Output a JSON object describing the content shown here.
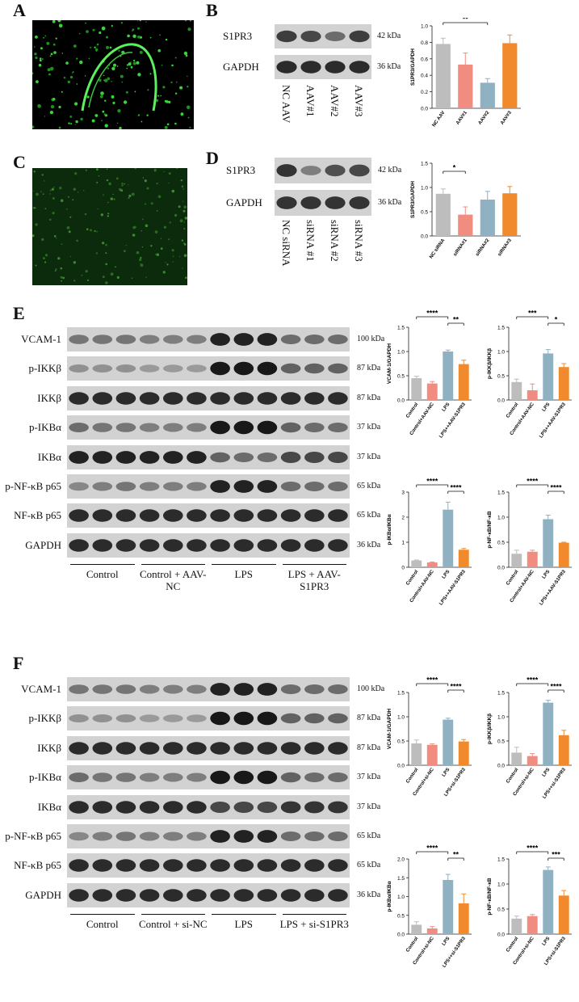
{
  "colors": {
    "control": "#bdbdbd",
    "control_vector": "#f08c80",
    "lps": "#8fb1c2",
    "lps_treatment": "#f08a2c"
  },
  "panels": {
    "A": "A",
    "B": "B",
    "C": "C",
    "D": "D",
    "E": "E",
    "F": "F"
  },
  "B": {
    "blots": [
      {
        "label": "S1PR3",
        "kda": "42 kDa"
      },
      {
        "label": "GAPDH",
        "kda": "36 kDa"
      }
    ],
    "lanes": [
      "NC AAV",
      "AAV#1",
      "AAV#2",
      "AAV#3"
    ]
  },
  "D": {
    "blots": [
      {
        "label": "S1PR3",
        "kda": "42 kDa"
      },
      {
        "label": "GAPDH",
        "kda": "36 kDa"
      }
    ],
    "lanes": [
      "NC siRNA",
      "siRNA #1",
      "siRNA #2",
      "siRNA #3"
    ]
  },
  "E": {
    "blots": [
      {
        "label": "VCAM-1",
        "kda": "100 kDa"
      },
      {
        "label": "p-IKKβ",
        "kda": "87 kDa"
      },
      {
        "label": "IKKβ",
        "kda": "87 kDa"
      },
      {
        "label": "p-IKBα",
        "kda": "37 kDa"
      },
      {
        "label": "IKBα",
        "kda": "37 kDa"
      },
      {
        "label": "p-NF-κB p65",
        "kda": "65 kDa"
      },
      {
        "label": "NF-κB p65",
        "kda": "65 kDa"
      },
      {
        "label": "GAPDH",
        "kda": "36 kDa"
      }
    ],
    "groups": [
      "Control",
      "Control + AAV-NC",
      "LPS",
      "LPS + AAV-S1PR3"
    ]
  },
  "F": {
    "blots": [
      {
        "label": "VCAM-1",
        "kda": "100 kDa"
      },
      {
        "label": "p-IKKβ",
        "kda": "87 kDa"
      },
      {
        "label": "IKKβ",
        "kda": "87 kDa"
      },
      {
        "label": "p-IKBα",
        "kda": "37 kDa"
      },
      {
        "label": "IKBα",
        "kda": "37 kDa"
      },
      {
        "label": "p-NF-κB p65",
        "kda": "65 kDa"
      },
      {
        "label": "NF-κB p65",
        "kda": "65 kDa"
      },
      {
        "label": "GAPDH",
        "kda": "36 kDa"
      }
    ],
    "groups": [
      "Control",
      "Control + si-NC",
      "LPS",
      "LPS + si-S1PR3"
    ]
  },
  "chart_data": [
    {
      "id": "B",
      "type": "bar",
      "ylabel": "S1PR3/GAPDH",
      "ylim": [
        0,
        1.0
      ],
      "yticks": [
        0.0,
        0.2,
        0.4,
        0.6,
        0.8,
        1.0
      ],
      "tick_labels": [
        "0.0",
        "0.2",
        "0.4",
        "0.6",
        "0.8",
        "1.0"
      ],
      "categories": [
        "NC AAV",
        "AAV#1",
        "AAV#2",
        "AAV#3"
      ],
      "values": [
        0.78,
        0.53,
        0.31,
        0.79
      ],
      "errors": [
        0.07,
        0.14,
        0.05,
        0.1
      ],
      "significance": [
        {
          "from": 0,
          "to": 2,
          "label": "**"
        }
      ]
    },
    {
      "id": "D",
      "type": "bar",
      "ylabel": "S1PR3/GAPDH",
      "ylim": [
        0,
        1.5
      ],
      "yticks": [
        0.0,
        0.5,
        1.0,
        1.5
      ],
      "tick_labels": [
        "0.0",
        "0.5",
        "1.0",
        "1.5"
      ],
      "categories": [
        "NC siRNA",
        "siRNA#1",
        "siRNA#2",
        "siRNA#3"
      ],
      "values": [
        0.87,
        0.44,
        0.75,
        0.88
      ],
      "errors": [
        0.1,
        0.16,
        0.17,
        0.14
      ],
      "significance": [
        {
          "from": 0,
          "to": 1,
          "label": "*"
        }
      ]
    },
    {
      "id": "E1",
      "type": "bar",
      "ylabel": "VCAM-1/GAPDH",
      "ylim": [
        0,
        1.5
      ],
      "yticks": [
        0.0,
        0.5,
        1.0,
        1.5
      ],
      "tick_labels": [
        "0.0",
        "0.5",
        "1.0",
        "1.5"
      ],
      "categories": [
        "Control",
        "Control+AAV-NC",
        "LPS",
        "LPS++AAV-S1PR3"
      ],
      "values": [
        0.45,
        0.34,
        1.0,
        0.74
      ],
      "errors": [
        0.04,
        0.04,
        0.03,
        0.08
      ],
      "significance": [
        {
          "from": 0,
          "to": 2,
          "label": "****"
        },
        {
          "from": 2,
          "to": 3,
          "label": "**"
        }
      ]
    },
    {
      "id": "E2",
      "type": "bar",
      "ylabel": "p-IKKβ/IKKβ",
      "ylim": [
        0,
        1.5
      ],
      "yticks": [
        0.0,
        0.5,
        1.0,
        1.5
      ],
      "tick_labels": [
        "0.0",
        "0.5",
        "1.0",
        "1.5"
      ],
      "categories": [
        "Control",
        "Control+AAV-NC",
        "LPS",
        "LPS++AAV-S1PR3"
      ],
      "values": [
        0.37,
        0.2,
        0.96,
        0.68
      ],
      "errors": [
        0.06,
        0.13,
        0.08,
        0.07
      ],
      "significance": [
        {
          "from": 0,
          "to": 2,
          "label": "***"
        },
        {
          "from": 2,
          "to": 3,
          "label": "*"
        }
      ]
    },
    {
      "id": "E3",
      "type": "bar",
      "ylabel": "p-IKBα/IKBα",
      "ylim": [
        0,
        3
      ],
      "yticks": [
        0,
        1,
        2,
        3
      ],
      "tick_labels": [
        "0",
        "1",
        "2",
        "3"
      ],
      "categories": [
        "Control",
        "Control+AAV-NC",
        "LPS",
        "LPS++AAV-S1PR3"
      ],
      "values": [
        0.27,
        0.19,
        2.3,
        0.7
      ],
      "errors": [
        0.02,
        0.02,
        0.3,
        0.05
      ],
      "significance": [
        {
          "from": 0,
          "to": 2,
          "label": "****"
        },
        {
          "from": 2,
          "to": 3,
          "label": "****"
        }
      ]
    },
    {
      "id": "E4",
      "type": "bar",
      "ylabel": "p-NF-κB/NF-κB",
      "ylim": [
        0,
        1.5
      ],
      "yticks": [
        0.0,
        0.5,
        1.0,
        1.5
      ],
      "tick_labels": [
        "0.0",
        "0.5",
        "1.0",
        "1.5"
      ],
      "categories": [
        "Control",
        "Control+AAV-NC",
        "LPS",
        "LPS++AAV-S1PR3"
      ],
      "values": [
        0.27,
        0.31,
        0.96,
        0.49
      ],
      "errors": [
        0.07,
        0.03,
        0.08,
        0.01
      ],
      "significance": [
        {
          "from": 0,
          "to": 2,
          "label": "****"
        },
        {
          "from": 2,
          "to": 3,
          "label": "****"
        }
      ]
    },
    {
      "id": "F1",
      "type": "bar",
      "ylabel": "VCAM-1/GAPDH",
      "ylim": [
        0,
        1.5
      ],
      "yticks": [
        0.0,
        0.5,
        1.0,
        1.5
      ],
      "tick_labels": [
        "0.0",
        "0.5",
        "1.0",
        "1.5"
      ],
      "categories": [
        "Control",
        "Control+si-NC",
        "LPS",
        "LPS+si-S1PR3"
      ],
      "values": [
        0.45,
        0.42,
        0.94,
        0.49
      ],
      "errors": [
        0.07,
        0.02,
        0.03,
        0.04
      ],
      "significance": [
        {
          "from": 0,
          "to": 2,
          "label": "****"
        },
        {
          "from": 2,
          "to": 3,
          "label": "****"
        }
      ]
    },
    {
      "id": "F2",
      "type": "bar",
      "ylabel": "p-IKKβ/IKKβ",
      "ylim": [
        0,
        1.5
      ],
      "yticks": [
        0.0,
        0.5,
        1.0,
        1.5
      ],
      "tick_labels": [
        "0.0",
        "0.5",
        "1.0",
        "1.5"
      ],
      "categories": [
        "Control",
        "Control+si-NC",
        "LPS",
        "LPS++si-S1PR3"
      ],
      "values": [
        0.26,
        0.19,
        1.29,
        0.62
      ],
      "errors": [
        0.11,
        0.05,
        0.05,
        0.1
      ],
      "significance": [
        {
          "from": 0,
          "to": 2,
          "label": "****"
        },
        {
          "from": 2,
          "to": 3,
          "label": "****"
        }
      ]
    },
    {
      "id": "F3",
      "type": "bar",
      "ylabel": "p-IKBα/IKBα",
      "ylim": [
        0,
        2.0
      ],
      "yticks": [
        0.0,
        0.5,
        1.0,
        1.5,
        2.0
      ],
      "tick_labels": [
        "0.0",
        "0.5",
        "1.0",
        "1.5",
        "2.0"
      ],
      "categories": [
        "Control",
        "Control+si-NC",
        "LPS",
        "LPS++si-S1PR3"
      ],
      "values": [
        0.25,
        0.15,
        1.44,
        0.82
      ],
      "errors": [
        0.08,
        0.05,
        0.15,
        0.25
      ],
      "significance": [
        {
          "from": 0,
          "to": 2,
          "label": "****"
        },
        {
          "from": 2,
          "to": 3,
          "label": "**"
        }
      ]
    },
    {
      "id": "F4",
      "type": "bar",
      "ylabel": "p-NF-κB/NF-κB",
      "ylim": [
        0,
        1.5
      ],
      "yticks": [
        0.0,
        0.5,
        1.0,
        1.5
      ],
      "tick_labels": [
        "0.0",
        "0.5",
        "1.0",
        "1.5"
      ],
      "categories": [
        "Control",
        "Control+si-NC",
        "LPS",
        "LPS+si-S1PR3"
      ],
      "values": [
        0.31,
        0.36,
        1.28,
        0.77
      ],
      "errors": [
        0.05,
        0.03,
        0.06,
        0.1
      ],
      "significance": [
        {
          "from": 0,
          "to": 2,
          "label": "****"
        },
        {
          "from": 2,
          "to": 3,
          "label": "***"
        }
      ]
    }
  ]
}
